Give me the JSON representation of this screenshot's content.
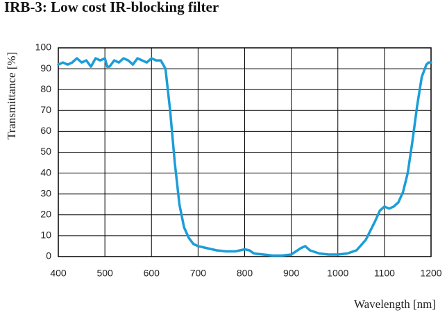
{
  "chart_data": {
    "type": "line",
    "title": "IRB-3: Low cost IR-blocking filter",
    "xlabel": "Wavelength [nm]",
    "ylabel": "Transmittance [%]",
    "xlim": [
      400,
      1200
    ],
    "ylim": [
      0,
      100
    ],
    "xticks": [
      400,
      500,
      600,
      700,
      800,
      900,
      1000,
      1100,
      1200
    ],
    "yticks": [
      0,
      10,
      20,
      30,
      40,
      50,
      60,
      70,
      80,
      90,
      100
    ],
    "grid": true,
    "x": [
      400,
      410,
      420,
      430,
      440,
      450,
      460,
      470,
      480,
      490,
      500,
      505,
      510,
      520,
      530,
      540,
      550,
      560,
      570,
      580,
      590,
      600,
      610,
      620,
      630,
      640,
      650,
      660,
      670,
      680,
      690,
      700,
      720,
      740,
      760,
      780,
      800,
      810,
      820,
      840,
      860,
      880,
      900,
      920,
      930,
      940,
      960,
      980,
      1000,
      1020,
      1040,
      1060,
      1080,
      1090,
      1100,
      1110,
      1120,
      1130,
      1140,
      1150,
      1160,
      1170,
      1180,
      1190,
      1195,
      1200
    ],
    "series": [
      {
        "name": "IRB-3",
        "color": "#1b9dd9",
        "values": [
          92,
          93,
          92,
          93,
          95,
          93,
          94,
          91,
          95,
          94,
          95,
          91,
          91,
          94,
          93,
          95,
          94,
          92,
          95,
          94,
          93,
          95,
          94,
          94,
          90,
          70,
          45,
          25,
          14,
          9,
          6,
          5,
          4,
          3,
          2.5,
          2.5,
          3.5,
          3,
          1.5,
          1,
          0.5,
          0.5,
          1,
          4,
          5,
          3,
          1.5,
          1,
          1,
          1.5,
          3,
          8,
          17,
          22,
          24,
          23,
          24,
          26,
          31,
          40,
          55,
          72,
          86,
          92,
          93,
          93
        ]
      }
    ]
  }
}
